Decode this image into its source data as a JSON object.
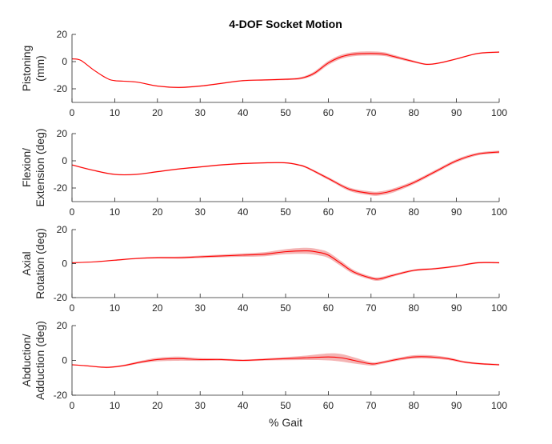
{
  "figure": {
    "title": "4-DOF Socket Motion",
    "xlabel": "% Gait"
  },
  "chart_data": [
    {
      "type": "line",
      "ylabel_lines": [
        "Pistoning",
        "(mm)"
      ],
      "xlim": [
        0,
        100
      ],
      "ylim": [
        -30,
        20
      ],
      "xticks": [
        0,
        10,
        20,
        30,
        40,
        50,
        60,
        70,
        80,
        90,
        100
      ],
      "yticks": [
        20,
        0,
        -20
      ],
      "line_color": "#ff0000",
      "band_color": "#f4b4b4",
      "series": [
        {
          "x": [
            0,
            2,
            5,
            8,
            10,
            15,
            20,
            25,
            30,
            35,
            40,
            45,
            50,
            53,
            55,
            57,
            60,
            63,
            66,
            70,
            73,
            75,
            80,
            83,
            86,
            90,
            95,
            100
          ],
          "y": [
            2,
            1,
            -6,
            -12,
            -14,
            -15,
            -18,
            -19,
            -18,
            -16,
            -14,
            -13.5,
            -13,
            -12.5,
            -11,
            -8,
            -1,
            3.5,
            5.5,
            6,
            5.5,
            4,
            0,
            -2,
            -1,
            2,
            6,
            7
          ],
          "band": [
            0.3,
            0.3,
            0.3,
            0.3,
            0.3,
            0.4,
            0.4,
            0.5,
            0.5,
            0.5,
            0.5,
            0.5,
            0.6,
            0.8,
            1.0,
            1.3,
            1.5,
            1.5,
            1.5,
            1.5,
            1.4,
            1.2,
            0.8,
            0.5,
            0.5,
            0.5,
            0.5,
            0.5
          ]
        }
      ]
    },
    {
      "type": "line",
      "ylabel_lines": [
        "Flexion/",
        "Extension (deg)"
      ],
      "xlim": [
        0,
        100
      ],
      "ylim": [
        -30,
        20
      ],
      "xticks": [
        0,
        10,
        20,
        30,
        40,
        50,
        60,
        70,
        80,
        90,
        100
      ],
      "yticks": [
        20,
        0,
        -20
      ],
      "line_color": "#ff0000",
      "band_color": "#f4b4b4",
      "series": [
        {
          "x": [
            0,
            5,
            10,
            15,
            20,
            25,
            30,
            35,
            40,
            45,
            50,
            53,
            55,
            60,
            65,
            70,
            72,
            75,
            80,
            85,
            90,
            95,
            100
          ],
          "y": [
            -3,
            -7,
            -10,
            -10,
            -8,
            -6,
            -4.5,
            -3,
            -2,
            -1.5,
            -1.5,
            -3,
            -5,
            -13,
            -21,
            -24,
            -24,
            -22,
            -16,
            -8,
            0,
            5,
            6.5
          ],
          "band": [
            0.5,
            0.5,
            0.5,
            0.5,
            0.5,
            0.5,
            0.5,
            0.5,
            0.5,
            0.5,
            0.5,
            0.6,
            0.7,
            1.0,
            1.3,
            1.5,
            1.5,
            1.5,
            1.3,
            1.2,
            1.2,
            1.0,
            1.0
          ]
        }
      ]
    },
    {
      "type": "line",
      "ylabel_lines": [
        "Axial",
        "Rotation (deg)"
      ],
      "xlim": [
        0,
        100
      ],
      "ylim": [
        -20,
        20
      ],
      "xticks": [
        0,
        10,
        20,
        30,
        40,
        50,
        60,
        70,
        80,
        90,
        100
      ],
      "yticks": [
        20,
        0,
        -20
      ],
      "line_color": "#ff0000",
      "band_color": "#f4b4b4",
      "series": [
        {
          "x": [
            0,
            5,
            10,
            15,
            20,
            25,
            30,
            35,
            40,
            45,
            50,
            55,
            58,
            60,
            63,
            66,
            70,
            72,
            75,
            80,
            85,
            90,
            95,
            100
          ],
          "y": [
            0.5,
            1,
            2,
            3,
            3.5,
            3.5,
            4,
            4.5,
            5,
            5.5,
            7,
            7.5,
            6.5,
            5,
            0,
            -5,
            -8.5,
            -9,
            -7,
            -4,
            -3,
            -1.5,
            0.5,
            0.5
          ],
          "band": [
            0.3,
            0.3,
            0.4,
            0.4,
            0.5,
            0.6,
            0.7,
            0.8,
            1.0,
            1.2,
            1.5,
            1.8,
            1.8,
            1.7,
            1.5,
            1.2,
            1.0,
            1.0,
            0.8,
            0.6,
            0.5,
            0.5,
            0.5,
            0.5
          ]
        }
      ]
    },
    {
      "type": "line",
      "ylabel_lines": [
        "Abduction/",
        "Adduction (deg)"
      ],
      "xlim": [
        0,
        100
      ],
      "ylim": [
        -20,
        20
      ],
      "xticks": [
        0,
        10,
        20,
        30,
        40,
        50,
        60,
        70,
        80,
        90,
        100
      ],
      "yticks": [
        20,
        0,
        -20
      ],
      "line_color": "#ff0000",
      "band_color": "#f4b4b4",
      "series": [
        {
          "x": [
            0,
            3,
            8,
            12,
            16,
            20,
            25,
            30,
            35,
            40,
            45,
            50,
            55,
            60,
            63,
            66,
            70,
            72,
            76,
            80,
            84,
            88,
            92,
            96,
            100
          ],
          "y": [
            -2.5,
            -3,
            -4,
            -3,
            -1,
            0.5,
            1,
            0.5,
            0.5,
            0,
            0.5,
            1,
            1.5,
            2,
            1.5,
            0,
            -2,
            -1.5,
            0.5,
            2,
            2,
            1,
            -1,
            -2,
            -2.5
          ],
          "band": [
            0.3,
            0.3,
            0.4,
            0.5,
            0.7,
            1.0,
            1.2,
            0.8,
            0.6,
            0.5,
            0.6,
            0.9,
            1.3,
            2.0,
            2.2,
            1.8,
            1.0,
            0.8,
            0.8,
            1.0,
            1.0,
            0.8,
            0.6,
            0.5,
            0.5
          ]
        }
      ]
    }
  ]
}
